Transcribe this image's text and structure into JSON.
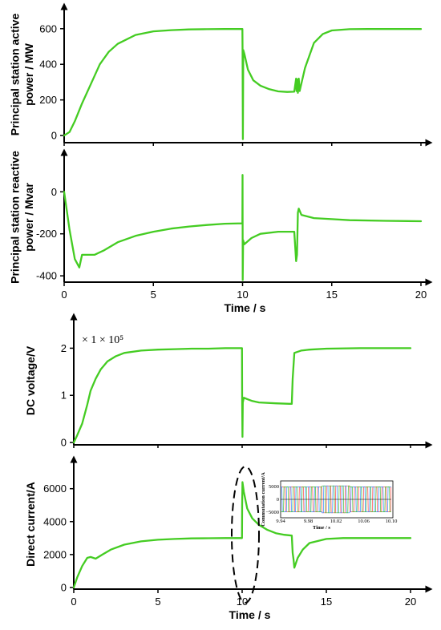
{
  "colors": {
    "series": "#44cc22",
    "axis": "#000000",
    "inset_series": [
      "#ff4444",
      "#3388ff",
      "#44bb33"
    ]
  },
  "chart_data": [
    {
      "type": "line",
      "ylabel": [
        "Principal station active",
        "power / MW"
      ],
      "xlim": [
        0,
        20
      ],
      "ylim": [
        -40,
        680
      ],
      "yticks": [
        0,
        200,
        400,
        600
      ],
      "x": [
        0,
        0.3,
        0.6,
        1.0,
        1.5,
        2.0,
        2.5,
        3.0,
        4.0,
        5.0,
        6.0,
        7.0,
        8.0,
        9.0,
        9.99,
        10.0,
        10.02,
        10.04,
        10.1,
        10.3,
        10.6,
        11.0,
        11.5,
        12.0,
        12.5,
        12.9,
        13.0,
        13.03,
        13.06,
        13.1,
        13.15,
        13.2,
        13.5,
        14.0,
        14.5,
        15.0,
        16.0,
        17.0,
        18.0,
        19.0,
        20.0
      ],
      "series": [
        {
          "values": [
            0,
            20,
            80,
            180,
            290,
            400,
            470,
            515,
            565,
            585,
            592,
            596,
            597,
            598,
            598,
            485,
            -20,
            480,
            460,
            370,
            310,
            280,
            260,
            248,
            245,
            246,
            320,
            250,
            315,
            240,
            320,
            250,
            380,
            520,
            570,
            590,
            597,
            598,
            598,
            598,
            598
          ]
        }
      ]
    },
    {
      "type": "line",
      "ylabel": [
        "Principal station reactive",
        "power / Mvar"
      ],
      "xlabel": "Time / s",
      "xlim": [
        0,
        20
      ],
      "ylim": [
        -430,
        150
      ],
      "yticks": [
        0,
        -200,
        -400
      ],
      "xticks": [
        0,
        5,
        10,
        15,
        20
      ],
      "x": [
        0,
        0.3,
        0.6,
        0.85,
        1.0,
        1.3,
        1.7,
        2.2,
        3.0,
        4.0,
        5.0,
        6.0,
        7.0,
        8.0,
        9.0,
        9.99,
        10.0,
        10.01,
        10.03,
        10.1,
        10.5,
        11.0,
        12.0,
        12.9,
        13.0,
        13.05,
        13.1,
        13.15,
        13.3,
        14.0,
        15.0,
        16.0,
        18.0,
        20.0
      ],
      "series": [
        {
          "values": [
            0,
            -180,
            -320,
            -360,
            -300,
            -300,
            -300,
            -280,
            -240,
            -210,
            -190,
            -175,
            -165,
            -158,
            -152,
            -150,
            80,
            -420,
            -230,
            -250,
            -220,
            -200,
            -190,
            -190,
            -330,
            -300,
            -100,
            -80,
            -110,
            -125,
            -130,
            -135,
            -138,
            -140
          ]
        }
      ]
    },
    {
      "type": "line",
      "ylabel": [
        "DC voltage/V"
      ],
      "scale_note": "× 1 × 10⁵",
      "xlim": [
        0,
        20
      ],
      "ylim": [
        -0.05,
        2.5
      ],
      "yticks": [
        0,
        1,
        2
      ],
      "x": [
        0,
        0.2,
        0.5,
        0.8,
        1.0,
        1.3,
        1.6,
        2.0,
        2.5,
        3.0,
        4.0,
        5.0,
        6.0,
        7.0,
        8.0,
        9.0,
        9.99,
        10.0,
        10.02,
        10.04,
        10.1,
        10.3,
        10.6,
        11.0,
        12.0,
        12.8,
        12.95,
        13.0,
        13.1,
        13.5,
        14.0,
        15.0,
        17.0,
        20.0
      ],
      "series": [
        {
          "values": [
            0,
            0.15,
            0.4,
            0.8,
            1.1,
            1.35,
            1.55,
            1.72,
            1.83,
            1.9,
            1.95,
            1.97,
            1.98,
            1.99,
            1.99,
            2.0,
            2.0,
            0.9,
            0.12,
            0.85,
            0.95,
            0.92,
            0.88,
            0.85,
            0.83,
            0.82,
            0.82,
            1.35,
            1.9,
            1.95,
            1.97,
            1.99,
            2.0,
            2.0
          ]
        }
      ]
    },
    {
      "type": "line",
      "ylabel": [
        "Direct current/A"
      ],
      "xlabel": "Time / s",
      "xlim": [
        0,
        20
      ],
      "ylim": [
        -100,
        7300
      ],
      "yticks": [
        0,
        2000,
        4000,
        6000
      ],
      "xticks": [
        0,
        5,
        10,
        15,
        20
      ],
      "x": [
        0,
        0.2,
        0.5,
        0.8,
        1.0,
        1.3,
        1.7,
        2.2,
        3.0,
        4.0,
        5.0,
        6.0,
        7.0,
        8.0,
        9.0,
        9.99,
        10.0,
        10.02,
        10.1,
        10.3,
        10.6,
        11.0,
        11.5,
        12.0,
        12.5,
        12.95,
        13.0,
        13.05,
        13.1,
        13.3,
        13.6,
        14.0,
        15.0,
        16.0,
        18.0,
        20.0
      ],
      "series": [
        {
          "values": [
            0,
            600,
            1300,
            1800,
            1850,
            1750,
            2000,
            2300,
            2600,
            2800,
            2900,
            2950,
            2980,
            2990,
            3000,
            3000,
            5000,
            6400,
            5800,
            4800,
            4200,
            3800,
            3500,
            3300,
            3200,
            3150,
            2100,
            1700,
            1200,
            1800,
            2300,
            2700,
            2950,
            3000,
            3000,
            3000
          ]
        }
      ],
      "inset": {
        "ylabel": "Commutation current/A",
        "xlabel": "Time / s",
        "xlim": [
          9.94,
          10.1
        ],
        "ylim": [
          -6500,
          6500
        ],
        "xticks": [
          "9.94",
          "9.98",
          "10.02",
          "10.06",
          "10.10"
        ],
        "yticks": [
          "5000",
          "0",
          "−5000"
        ]
      }
    }
  ]
}
